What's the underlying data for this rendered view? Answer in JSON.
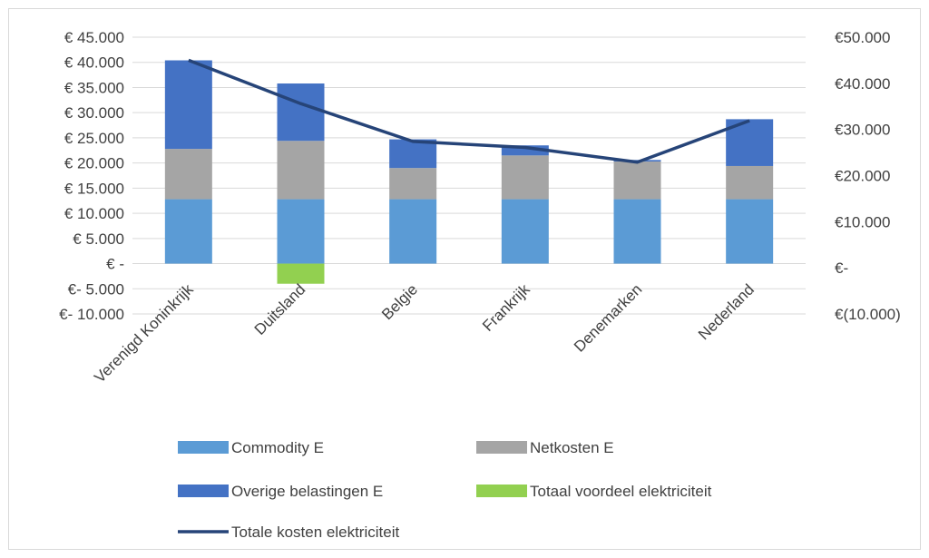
{
  "chart_data": {
    "type": "bar",
    "stacked": true,
    "categories": [
      "Verenigd Koninkrijk",
      "Duitsland",
      "Belgie",
      "Frankrijk",
      "Denemarken",
      "Nederland"
    ],
    "series": [
      {
        "name": "Commodity E",
        "kind": "bar",
        "color": "#5b9bd5",
        "values": [
          12800,
          12800,
          12800,
          12800,
          12800,
          12800
        ]
      },
      {
        "name": "Netkosten E",
        "kind": "bar",
        "color": "#a5a5a5",
        "values": [
          10000,
          11600,
          6200,
          8700,
          7500,
          6600
        ]
      },
      {
        "name": "Overige belastingen E",
        "kind": "bar",
        "color": "#4472c4",
        "values": [
          17600,
          11400,
          5700,
          2000,
          300,
          9300
        ]
      },
      {
        "name": "Totaal voordeel elektriciteit",
        "kind": "bar",
        "color": "#92d050",
        "values": [
          0,
          -4000,
          0,
          0,
          0,
          0
        ]
      },
      {
        "name": "Totale kosten elektriciteit",
        "kind": "line",
        "axis": "secondary",
        "color": "#264478",
        "values": [
          45000,
          35600,
          27400,
          26100,
          22900,
          31900
        ]
      }
    ],
    "y_axis": {
      "min": -10000,
      "max": 45000,
      "step": 5000,
      "tick_labels": [
        "€- 10.000",
        "€- 5.000",
        "€ -",
        "€ 5.000",
        "€ 10.000",
        "€ 15.000",
        "€ 20.000",
        "€ 25.000",
        "€ 30.000",
        "€ 35.000",
        "€ 40.000",
        "€ 45.000"
      ]
    },
    "y2_axis": {
      "min": -10000,
      "max": 50000,
      "step": 10000,
      "tick_labels": [
        "€(10.000)",
        "€-",
        "€10.000",
        "€20.000",
        "€30.000",
        "€40.000",
        "€50.000"
      ]
    },
    "grid": true,
    "legend_position": "bottom"
  }
}
